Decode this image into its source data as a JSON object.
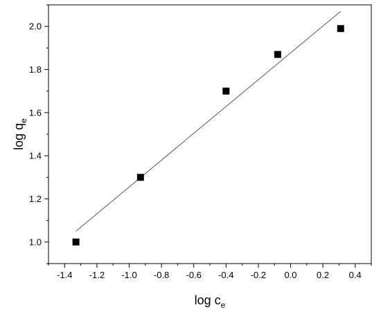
{
  "chart_data": {
    "type": "scatter",
    "title": "",
    "xlabel": {
      "main": "log c",
      "sub": "e"
    },
    "ylabel": {
      "main": "log q",
      "sub": "e"
    },
    "xlim": [
      -1.5,
      0.5
    ],
    "ylim": [
      0.9,
      2.1
    ],
    "xticks": [
      -1.4,
      -1.2,
      -1.0,
      -0.8,
      -0.6,
      -0.4,
      -0.2,
      0.0,
      0.2,
      0.4
    ],
    "xtick_labels": [
      "-1.4",
      "-1.2",
      "-1.0",
      "-0.8",
      "-0.6",
      "-0.4",
      "-0.2",
      "0.0",
      "0.2",
      "0.4"
    ],
    "yticks": [
      1.0,
      1.2,
      1.4,
      1.6,
      1.8,
      2.0
    ],
    "ytick_labels": [
      "1.0",
      "1.2",
      "1.4",
      "1.6",
      "1.8",
      "2.0"
    ],
    "series": [
      {
        "marker": "square",
        "color": "#000000",
        "points": [
          {
            "x": -1.33,
            "y": 1.0
          },
          {
            "x": -0.93,
            "y": 1.3
          },
          {
            "x": -0.4,
            "y": 1.7
          },
          {
            "x": -0.08,
            "y": 1.87
          },
          {
            "x": 0.31,
            "y": 1.99
          }
        ]
      }
    ],
    "fit_line": {
      "color": "#555555",
      "x": [
        -1.33,
        0.31
      ],
      "y": [
        1.05,
        2.07
      ]
    },
    "grid": false,
    "legend": "none"
  }
}
